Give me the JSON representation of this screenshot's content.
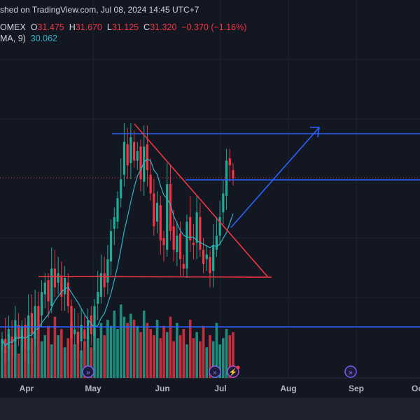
{
  "header": {
    "published": "shed on TradingView.com, Jul 08, 2024 14:45 UTC+7",
    "symbol": "OMEX",
    "o_label": "O",
    "open": "31.475",
    "h_label": "H",
    "high": "31.670",
    "l_label": "L",
    "low": "31.125",
    "c_label": "C",
    "close": "31.320",
    "change": "−0.370 (−1.16%)",
    "ma_label": "MA, 9)",
    "ma_value": "30.062"
  },
  "colors": {
    "up": "#22ab94",
    "down": "#f23645",
    "ma": "#2fb3c6",
    "drawing_blue": "#2962ff",
    "drawing_red": "#f23645",
    "bg": "#131722"
  },
  "chart_data": {
    "type": "candlestick",
    "x_ticks": [
      "Apr",
      "May",
      "Jun",
      "Jul",
      "Aug",
      "Sep",
      "Oc"
    ],
    "last_close": 31.32,
    "closes": [
      27.9,
      27.6,
      28.0,
      27.8,
      28.3,
      27.9,
      28.1,
      27.7,
      28.4,
      28.0,
      28.6,
      28.3,
      28.9,
      29.1,
      28.7,
      29.4,
      29.0,
      29.3,
      28.8,
      29.2,
      28.6,
      27.9,
      28.1,
      27.8,
      28.2,
      27.9,
      28.3,
      28.0,
      28.6,
      28.9,
      29.3,
      29.0,
      29.6,
      30.2,
      30.5,
      30.9,
      31.3,
      32.1,
      31.6,
      32.2,
      31.7,
      31.9,
      31.3,
      32.0,
      31.5,
      31.0,
      30.3,
      30.8,
      30.0,
      29.9,
      31.2,
      30.2,
      29.8,
      30.1,
      29.6,
      29.4,
      30.4,
      30.0,
      29.9,
      30.6,
      29.8,
      29.5,
      29.7,
      29.3,
      29.9,
      30.1,
      30.5,
      31.0,
      31.7,
      31.6,
      31.32
    ],
    "volumes": [
      60,
      45,
      80,
      55,
      70,
      40,
      85,
      50,
      90,
      65,
      75,
      95,
      60,
      70,
      85,
      55,
      100,
      70,
      80,
      50,
      65,
      90,
      55,
      75,
      45,
      60,
      70,
      50,
      80,
      65,
      90,
      70,
      95,
      85,
      110,
      80,
      120,
      100,
      90,
      105,
      95,
      85,
      75,
      110,
      90,
      80,
      70,
      95,
      65,
      85,
      75,
      100,
      60,
      90,
      70,
      80,
      55,
      95,
      65,
      75,
      60,
      85,
      50,
      70,
      60,
      90,
      55,
      65,
      80,
      70,
      75
    ],
    "ma9_last": 30.062,
    "events": [
      "dividend",
      "dividend",
      "earnings",
      "dividend"
    ]
  }
}
